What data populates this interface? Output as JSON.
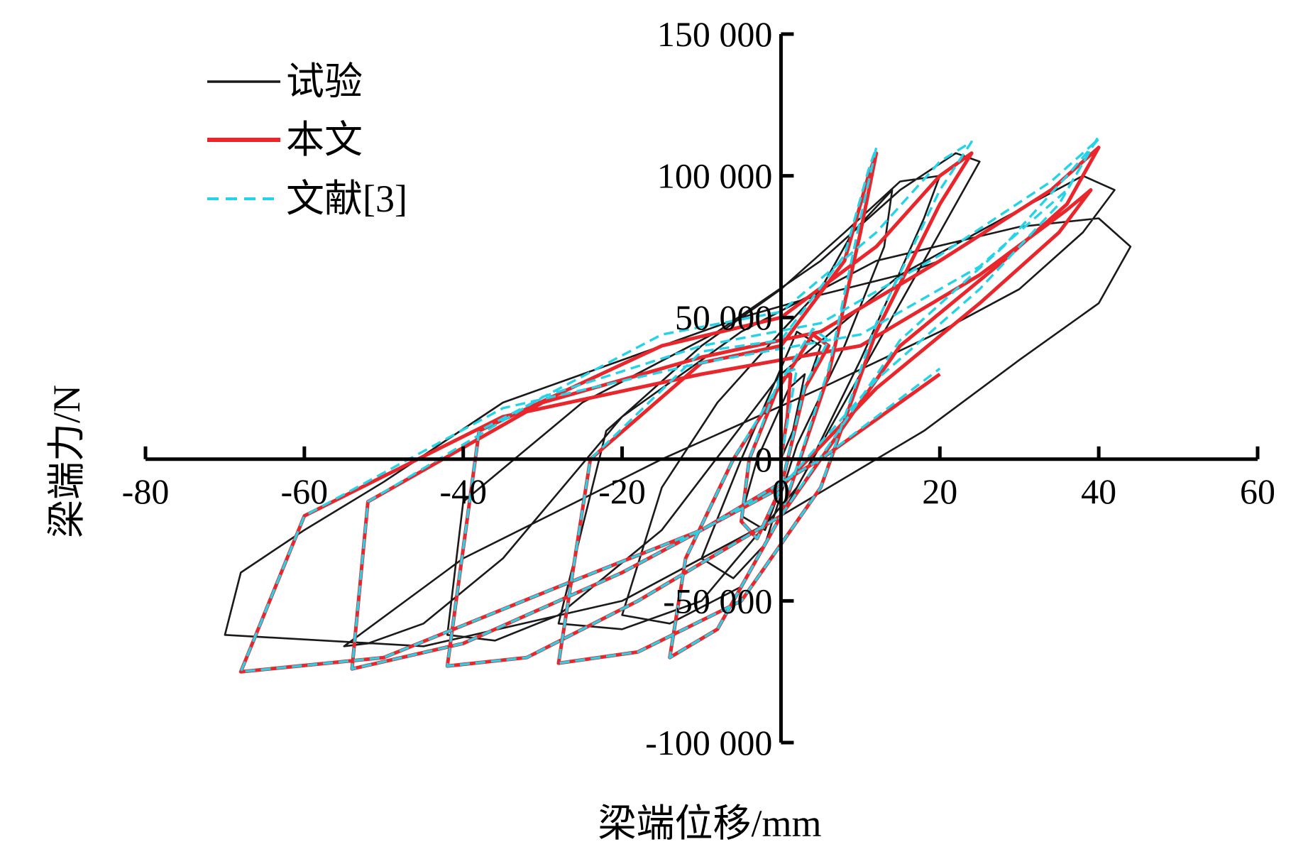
{
  "chart_data": {
    "type": "line",
    "title": "",
    "xlabel": "梁端位移/mm",
    "ylabel": "梁端力/N",
    "xlim": [
      -80,
      60
    ],
    "ylim": [
      -100000,
      150000
    ],
    "x_ticks": [
      -80,
      -60,
      -40,
      -20,
      0,
      20,
      40,
      60
    ],
    "x_tick_labels": [
      "-80",
      "-60",
      "-40",
      "-20",
      "0",
      "20",
      "40",
      "60"
    ],
    "y_ticks": [
      -100000,
      -50000,
      0,
      50000,
      100000,
      150000
    ],
    "y_tick_labels": [
      "-100 000",
      "-50 000",
      "0",
      "50 000",
      "100 000",
      "150 000"
    ],
    "grid": false,
    "legend_position": "top-left",
    "colors": {
      "test": "#1a1a1a",
      "this_paper": "#e8262b",
      "ref3": "#25d3e8"
    },
    "series": [
      {
        "name": "试验",
        "key": "test",
        "style": "solid",
        "x": [
          0,
          1.5,
          3,
          1,
          -3,
          -5,
          -2,
          0,
          2.5,
          5,
          2,
          -5,
          -10,
          -6,
          -2,
          2,
          8,
          13,
          14,
          9,
          5,
          0,
          -8,
          -15,
          -20,
          -14,
          -5,
          3,
          10,
          18,
          20,
          15,
          8,
          0,
          -10,
          -22,
          -28,
          -20,
          -10,
          2,
          12,
          20,
          25,
          22,
          15,
          5,
          -8,
          -25,
          -40,
          -42,
          -36,
          -28,
          -15,
          0,
          15,
          28,
          38,
          42,
          38,
          30,
          20,
          5,
          -15,
          -40,
          -55,
          -52,
          -45,
          -35,
          -20,
          -5,
          12,
          30,
          40,
          44,
          40,
          30,
          18,
          0,
          -20,
          -45,
          -70,
          -68,
          -60,
          -50,
          -35,
          -20,
          -5,
          5,
          15,
          20
        ],
        "y": [
          0,
          10000,
          30000,
          25000,
          0,
          -20000,
          -25000,
          -10000,
          20000,
          40000,
          45000,
          0,
          -35000,
          -42000,
          -30000,
          5000,
          40000,
          75000,
          95000,
          80000,
          60000,
          45000,
          20000,
          -10000,
          -55000,
          -58000,
          -45000,
          -5000,
          35000,
          85000,
          100000,
          98000,
          80000,
          60000,
          40000,
          10000,
          -58000,
          -60000,
          -50000,
          -10000,
          40000,
          80000,
          105000,
          108000,
          95000,
          70000,
          45000,
          20000,
          -15000,
          -62000,
          -64000,
          -55000,
          -25000,
          30000,
          65000,
          85000,
          100000,
          95000,
          80000,
          60000,
          45000,
          25000,
          0,
          -35000,
          -66000,
          -65000,
          -58000,
          -35000,
          15000,
          45000,
          70000,
          82000,
          85000,
          75000,
          55000,
          35000,
          10000,
          -20000,
          -50000,
          -66000,
          -62000,
          -40000,
          -25000,
          -8000,
          20000,
          35000,
          50000,
          58000,
          65000,
          70000
        ]
      },
      {
        "name": "本文",
        "key": "this_paper",
        "style": "solid",
        "x": [
          0,
          0.8,
          1.2,
          0,
          -4,
          -5,
          -3,
          0,
          3,
          6,
          4,
          -6,
          -12,
          -14,
          -8,
          0,
          6,
          10,
          12,
          11,
          8,
          0,
          -10,
          -24,
          -28,
          -18,
          -5,
          5,
          12,
          20,
          24,
          20,
          12,
          0,
          -15,
          -38,
          -42,
          -32,
          -18,
          0,
          15,
          28,
          36,
          40,
          34,
          20,
          5,
          -10,
          -30,
          -52,
          -54,
          -40,
          -20,
          0,
          12,
          25,
          35,
          39,
          36,
          25,
          10,
          -10,
          -35,
          -60,
          -68,
          -50,
          -28,
          -10,
          5,
          20
        ],
        "y": [
          0,
          15000,
          30000,
          28000,
          0,
          -22000,
          -28000,
          -10000,
          25000,
          40000,
          44000,
          0,
          -35000,
          -70000,
          -60000,
          -20000,
          30000,
          80000,
          108000,
          100000,
          70000,
          40000,
          34000,
          0,
          -72000,
          -68000,
          -50000,
          -10000,
          45000,
          90000,
          108000,
          100000,
          75000,
          50000,
          40000,
          10000,
          -73000,
          -70000,
          -50000,
          -20000,
          40000,
          70000,
          90000,
          110000,
          95000,
          70000,
          45000,
          36000,
          20000,
          -15000,
          -74000,
          -65000,
          -40000,
          -10000,
          25000,
          55000,
          80000,
          95000,
          88000,
          65000,
          40000,
          30000,
          15000,
          -20000,
          -75000,
          -70000,
          -45000,
          -25000,
          0,
          30000
        ]
      },
      {
        "name": "文献[3]",
        "key": "ref3",
        "style": "dashed",
        "x": [
          0,
          1,
          2,
          0,
          -4,
          -5,
          -3,
          0,
          3,
          6,
          4,
          -6,
          -12,
          -14,
          -8,
          0,
          6,
          10,
          12,
          11,
          8,
          0,
          -10,
          -24,
          -28,
          -18,
          -5,
          5,
          12,
          20,
          24,
          20,
          12,
          0,
          -15,
          -38,
          -42,
          -32,
          -18,
          0,
          15,
          28,
          36,
          40,
          34,
          20,
          5,
          -10,
          -30,
          -52,
          -54,
          -40,
          -20,
          0,
          12,
          25,
          35,
          40,
          36,
          25,
          10,
          -10,
          -35,
          -60,
          -68,
          -50,
          -28,
          -10,
          5,
          20
        ],
        "y": [
          0,
          16000,
          32000,
          30000,
          0,
          -22000,
          -28000,
          -10000,
          26000,
          42000,
          46000,
          0,
          -35000,
          -70000,
          -60000,
          -20000,
          32000,
          85000,
          110000,
          102000,
          72000,
          42000,
          38000,
          0,
          -72000,
          -68000,
          -50000,
          -10000,
          48000,
          95000,
          112000,
          105000,
          80000,
          52000,
          44000,
          10000,
          -73000,
          -70000,
          -50000,
          -20000,
          42000,
          75000,
          100000,
          113000,
          98000,
          72000,
          48000,
          40000,
          22000,
          -15000,
          -74000,
          -65000,
          -40000,
          -10000,
          28000,
          60000,
          90000,
          114000,
          95000,
          68000,
          44000,
          34000,
          18000,
          -20000,
          -75000,
          -70000,
          -45000,
          -25000,
          0,
          32000
        ]
      }
    ]
  }
}
